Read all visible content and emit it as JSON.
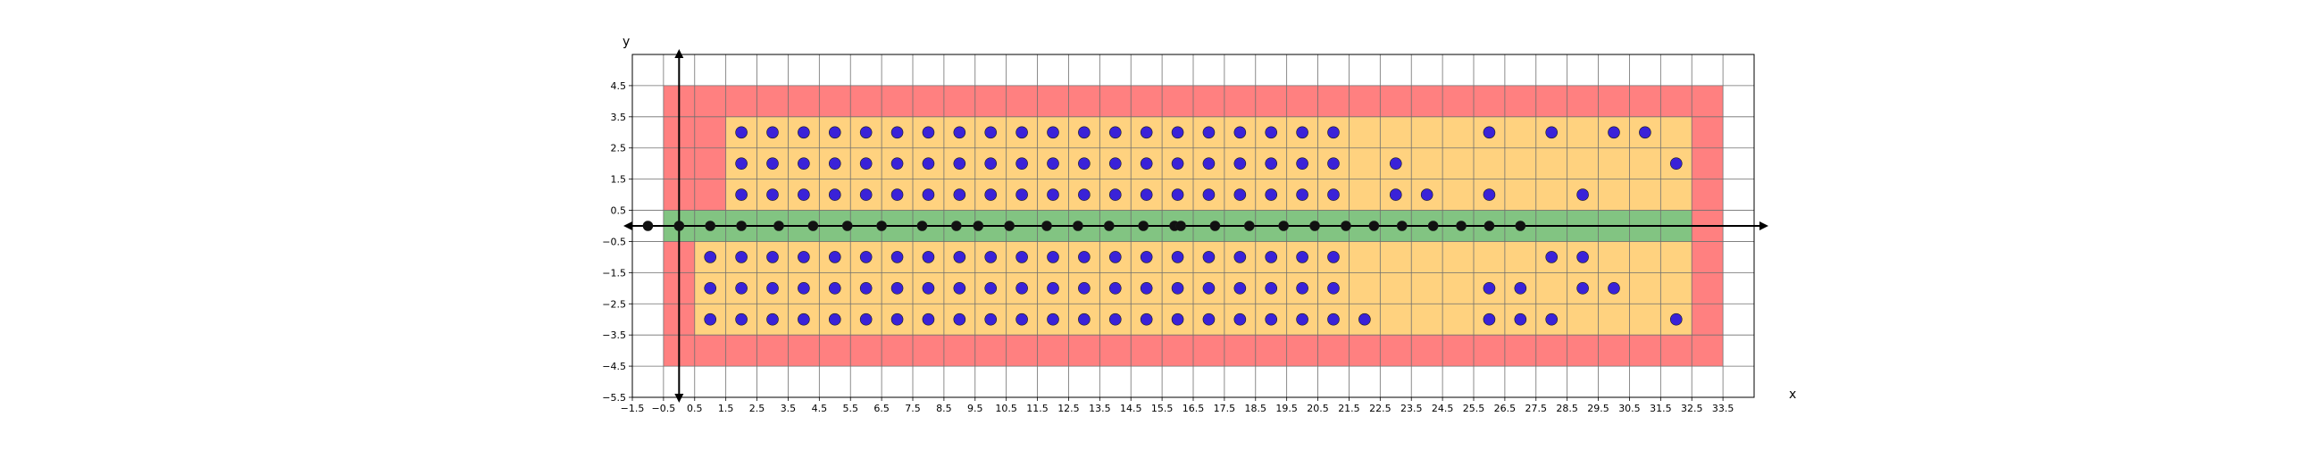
{
  "chart_data": {
    "type": "scatter",
    "title": "",
    "xlabel": "x",
    "ylabel": "y",
    "xlim": [
      -1.5,
      34.5
    ],
    "ylim": [
      -5.5,
      5.5
    ],
    "grid": true,
    "x_ticks": [
      -1.5,
      -0.5,
      0.5,
      1.5,
      2.5,
      3.5,
      4.5,
      5.5,
      6.5,
      7.5,
      8.5,
      9.5,
      10.5,
      11.5,
      12.5,
      13.5,
      14.5,
      15.5,
      16.5,
      17.5,
      18.5,
      19.5,
      20.5,
      21.5,
      22.5,
      23.5,
      24.5,
      25.5,
      26.5,
      27.5,
      28.5,
      29.5,
      30.5,
      31.5,
      32.5,
      33.5
    ],
    "x_tick_labels": [
      "−1.5",
      "−0.5",
      "0.5",
      "1.5",
      "2.5",
      "3.5",
      "4.5",
      "5.5",
      "6.5",
      "7.5",
      "8.5",
      "9.5",
      "10.5",
      "11.5",
      "12.5",
      "13.5",
      "14.5",
      "15.5",
      "16.5",
      "17.5",
      "18.5",
      "19.5",
      "20.5",
      "21.5",
      "22.5",
      "23.5",
      "24.5",
      "25.5",
      "26.5",
      "27.5",
      "28.5",
      "29.5",
      "30.5",
      "31.5",
      "32.5",
      "33.5"
    ],
    "y_ticks": [
      4.5,
      3.5,
      2.5,
      1.5,
      0.5,
      -0.5,
      -1.5,
      -2.5,
      -3.5,
      -4.5,
      -5.5
    ],
    "y_tick_labels": [
      "4.5",
      "3.5",
      "2.5",
      "1.5",
      "0.5",
      "−0.5",
      "−1.5",
      "−2.5",
      "−3.5",
      "−4.5",
      "−5.5"
    ],
    "regions": [
      {
        "color": "#ff8080",
        "x": [
          -0.5,
          33.5
        ],
        "y": [
          -4.5,
          4.5
        ]
      },
      {
        "color": "#ffd27f",
        "x": [
          0.5,
          32.5
        ],
        "y": [
          -3.5,
          -0.5
        ]
      },
      {
        "color": "#ffd27f",
        "x": [
          1.5,
          32.5
        ],
        "y": [
          0.5,
          3.5
        ]
      },
      {
        "color": "#82c482",
        "x": [
          -0.5,
          32.5
        ],
        "y": [
          -0.5,
          0.5
        ]
      }
    ],
    "series": [
      {
        "color": "#3a22d8",
        "points": [
          [
            2,
            3
          ],
          [
            3,
            3
          ],
          [
            4,
            3
          ],
          [
            5,
            3
          ],
          [
            6,
            3
          ],
          [
            7,
            3
          ],
          [
            8,
            3
          ],
          [
            9,
            3
          ],
          [
            10,
            3
          ],
          [
            11,
            3
          ],
          [
            12,
            3
          ],
          [
            13,
            3
          ],
          [
            14,
            3
          ],
          [
            15,
            3
          ],
          [
            16,
            3
          ],
          [
            17,
            3
          ],
          [
            18,
            3
          ],
          [
            19,
            3
          ],
          [
            20,
            3
          ],
          [
            21,
            3
          ],
          [
            26,
            3
          ],
          [
            28,
            3
          ],
          [
            30,
            3
          ],
          [
            31,
            3
          ],
          [
            2,
            2
          ],
          [
            3,
            2
          ],
          [
            4,
            2
          ],
          [
            5,
            2
          ],
          [
            6,
            2
          ],
          [
            7,
            2
          ],
          [
            8,
            2
          ],
          [
            9,
            2
          ],
          [
            10,
            2
          ],
          [
            11,
            2
          ],
          [
            12,
            2
          ],
          [
            13,
            2
          ],
          [
            14,
            2
          ],
          [
            15,
            2
          ],
          [
            16,
            2
          ],
          [
            17,
            2
          ],
          [
            18,
            2
          ],
          [
            19,
            2
          ],
          [
            20,
            2
          ],
          [
            21,
            2
          ],
          [
            23,
            2
          ],
          [
            32,
            2
          ],
          [
            2,
            1
          ],
          [
            3,
            1
          ],
          [
            4,
            1
          ],
          [
            5,
            1
          ],
          [
            6,
            1
          ],
          [
            7,
            1
          ],
          [
            8,
            1
          ],
          [
            9,
            1
          ],
          [
            10,
            1
          ],
          [
            11,
            1
          ],
          [
            12,
            1
          ],
          [
            13,
            1
          ],
          [
            14,
            1
          ],
          [
            15,
            1
          ],
          [
            16,
            1
          ],
          [
            17,
            1
          ],
          [
            18,
            1
          ],
          [
            19,
            1
          ],
          [
            20,
            1
          ],
          [
            21,
            1
          ],
          [
            23,
            1
          ],
          [
            24,
            1
          ],
          [
            26,
            1
          ],
          [
            29,
            1
          ],
          [
            1,
            -1
          ],
          [
            2,
            -1
          ],
          [
            3,
            -1
          ],
          [
            4,
            -1
          ],
          [
            5,
            -1
          ],
          [
            6,
            -1
          ],
          [
            7,
            -1
          ],
          [
            8,
            -1
          ],
          [
            9,
            -1
          ],
          [
            10,
            -1
          ],
          [
            11,
            -1
          ],
          [
            12,
            -1
          ],
          [
            13,
            -1
          ],
          [
            14,
            -1
          ],
          [
            15,
            -1
          ],
          [
            16,
            -1
          ],
          [
            17,
            -1
          ],
          [
            18,
            -1
          ],
          [
            19,
            -1
          ],
          [
            20,
            -1
          ],
          [
            21,
            -1
          ],
          [
            28,
            -1
          ],
          [
            29,
            -1
          ],
          [
            1,
            -2
          ],
          [
            2,
            -2
          ],
          [
            3,
            -2
          ],
          [
            4,
            -2
          ],
          [
            5,
            -2
          ],
          [
            6,
            -2
          ],
          [
            7,
            -2
          ],
          [
            8,
            -2
          ],
          [
            9,
            -2
          ],
          [
            10,
            -2
          ],
          [
            11,
            -2
          ],
          [
            12,
            -2
          ],
          [
            13,
            -2
          ],
          [
            14,
            -2
          ],
          [
            15,
            -2
          ],
          [
            16,
            -2
          ],
          [
            17,
            -2
          ],
          [
            18,
            -2
          ],
          [
            19,
            -2
          ],
          [
            20,
            -2
          ],
          [
            21,
            -2
          ],
          [
            26,
            -2
          ],
          [
            27,
            -2
          ],
          [
            29,
            -2
          ],
          [
            30,
            -2
          ],
          [
            1,
            -3
          ],
          [
            2,
            -3
          ],
          [
            3,
            -3
          ],
          [
            4,
            -3
          ],
          [
            5,
            -3
          ],
          [
            6,
            -3
          ],
          [
            7,
            -3
          ],
          [
            8,
            -3
          ],
          [
            9,
            -3
          ],
          [
            10,
            -3
          ],
          [
            11,
            -3
          ],
          [
            12,
            -3
          ],
          [
            13,
            -3
          ],
          [
            14,
            -3
          ],
          [
            15,
            -3
          ],
          [
            16,
            -3
          ],
          [
            17,
            -3
          ],
          [
            18,
            -3
          ],
          [
            19,
            -3
          ],
          [
            20,
            -3
          ],
          [
            21,
            -3
          ],
          [
            22,
            -3
          ],
          [
            26,
            -3
          ],
          [
            27,
            -3
          ],
          [
            28,
            -3
          ],
          [
            32,
            -3
          ]
        ]
      },
      {
        "color": "#111111",
        "points": [
          [
            -1,
            0
          ],
          [
            0,
            0
          ],
          [
            1,
            0
          ],
          [
            2,
            0
          ],
          [
            3.2,
            0
          ],
          [
            4.3,
            0
          ],
          [
            5.4,
            0
          ],
          [
            6.5,
            0
          ],
          [
            7.8,
            0
          ],
          [
            8.9,
            0
          ],
          [
            9.6,
            0
          ],
          [
            10.6,
            0
          ],
          [
            11.8,
            0
          ],
          [
            12.8,
            0
          ],
          [
            13.8,
            0
          ],
          [
            14.9,
            0
          ],
          [
            15.9,
            0
          ],
          [
            16.1,
            0
          ],
          [
            17.2,
            0
          ],
          [
            18.3,
            0
          ],
          [
            19.4,
            0
          ],
          [
            20.4,
            0
          ],
          [
            21.4,
            0
          ],
          [
            22.3,
            0
          ],
          [
            23.2,
            0
          ],
          [
            24.2,
            0
          ],
          [
            25.1,
            0
          ],
          [
            26,
            0
          ],
          [
            27,
            0
          ]
        ]
      }
    ]
  }
}
